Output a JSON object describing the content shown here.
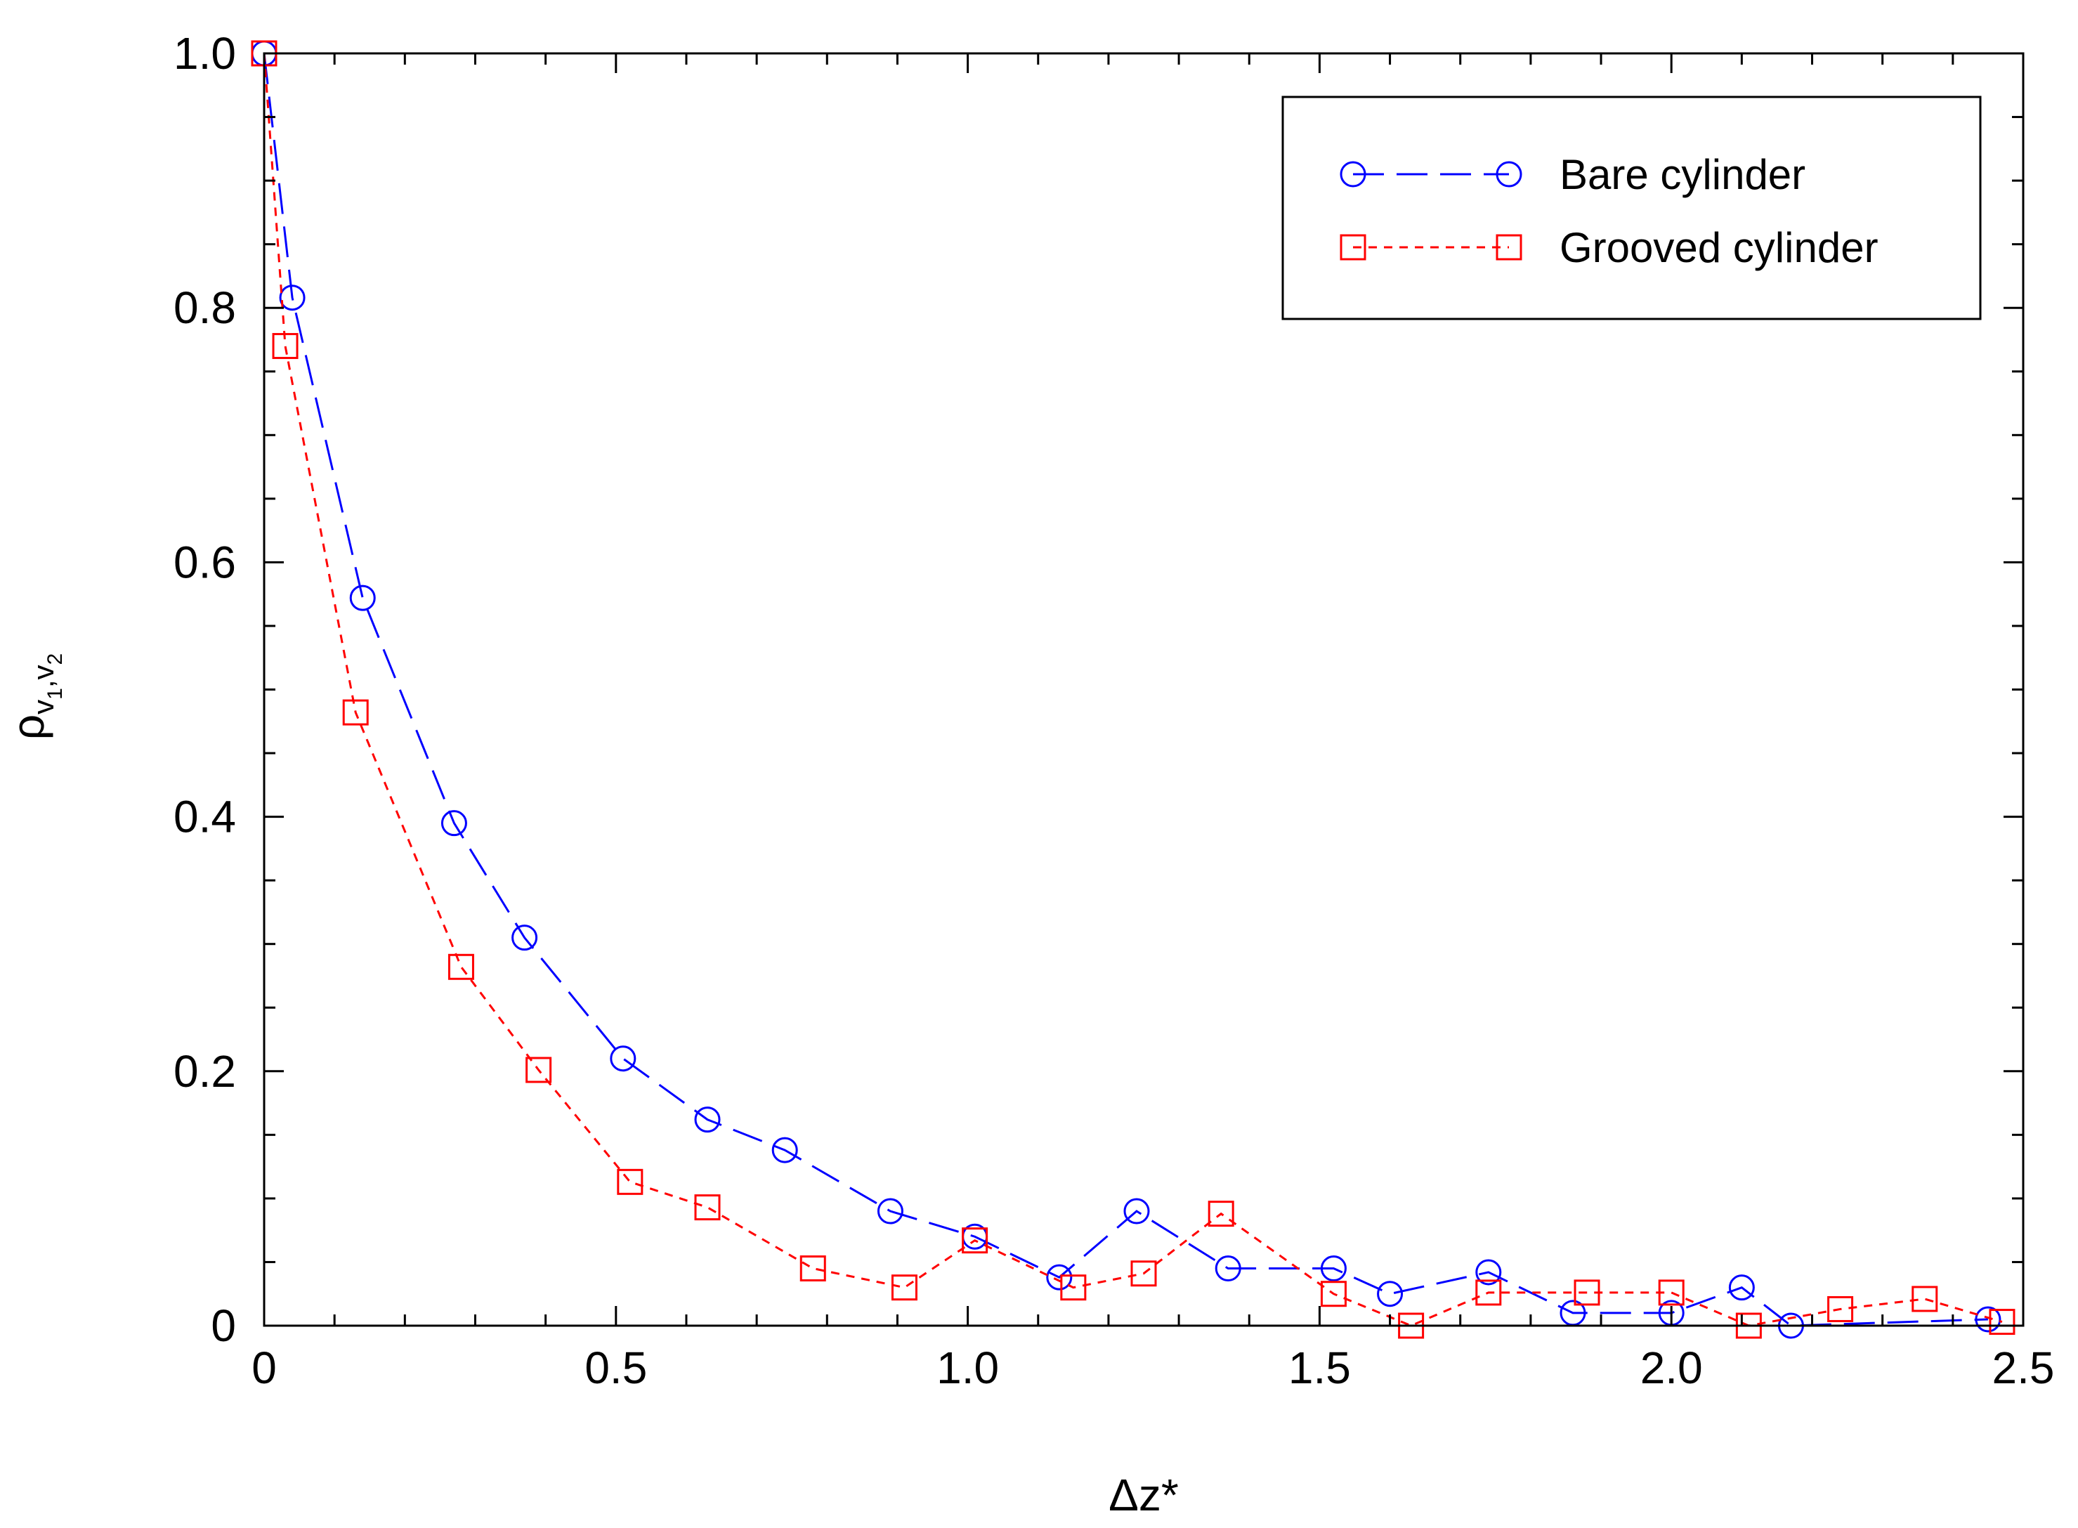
{
  "chart_data": {
    "type": "line",
    "title": "",
    "xlabel": "Δz*",
    "ylabel": {
      "base": "ρ",
      "sub1_v": "v",
      "sub1_n": "1",
      "sep": ",",
      "sub2_v": "v",
      "sub2_n": "2"
    },
    "xlim": [
      0,
      2.5
    ],
    "ylim": [
      0,
      1.0
    ],
    "xticks": [
      0,
      0.5,
      1.0,
      1.5,
      2.0,
      2.5
    ],
    "xtick_labels": [
      "0",
      "0.5",
      "1.0",
      "1.5",
      "2.0",
      "2.5"
    ],
    "yticks": [
      0,
      0.2,
      0.4,
      0.6,
      0.8,
      1.0
    ],
    "ytick_labels": [
      "0",
      "0.2",
      "0.4",
      "0.6",
      "0.8",
      "1.0"
    ],
    "legend_position": "top-right",
    "series": [
      {
        "name": "Bare cylinder",
        "color": "#0000ff",
        "marker": "circle",
        "line_style": "long-dash",
        "x": [
          0.0,
          0.04,
          0.14,
          0.27,
          0.37,
          0.51,
          0.63,
          0.74,
          0.89,
          1.01,
          1.13,
          1.24,
          1.37,
          1.52,
          1.6,
          1.74,
          1.86,
          2.0,
          2.1,
          2.17,
          2.45
        ],
        "y": [
          1.0,
          0.808,
          0.572,
          0.395,
          0.305,
          0.21,
          0.162,
          0.138,
          0.09,
          0.07,
          0.038,
          0.09,
          0.045,
          0.045,
          0.025,
          0.042,
          0.01,
          0.01,
          0.03,
          0.0,
          0.005
        ]
      },
      {
        "name": "Grooved cylinder",
        "color": "#ff0000",
        "marker": "square",
        "line_style": "short-dash",
        "x": [
          0.0,
          0.03,
          0.13,
          0.28,
          0.39,
          0.52,
          0.63,
          0.78,
          0.91,
          1.01,
          1.15,
          1.25,
          1.36,
          1.52,
          1.63,
          1.74,
          1.88,
          2.0,
          2.11,
          2.24,
          2.36,
          2.47
        ],
        "y": [
          1.0,
          0.77,
          0.482,
          0.282,
          0.201,
          0.113,
          0.093,
          0.045,
          0.03,
          0.067,
          0.03,
          0.041,
          0.088,
          0.025,
          0.0,
          0.026,
          0.026,
          0.026,
          0.0,
          0.013,
          0.021,
          0.003
        ]
      }
    ]
  }
}
